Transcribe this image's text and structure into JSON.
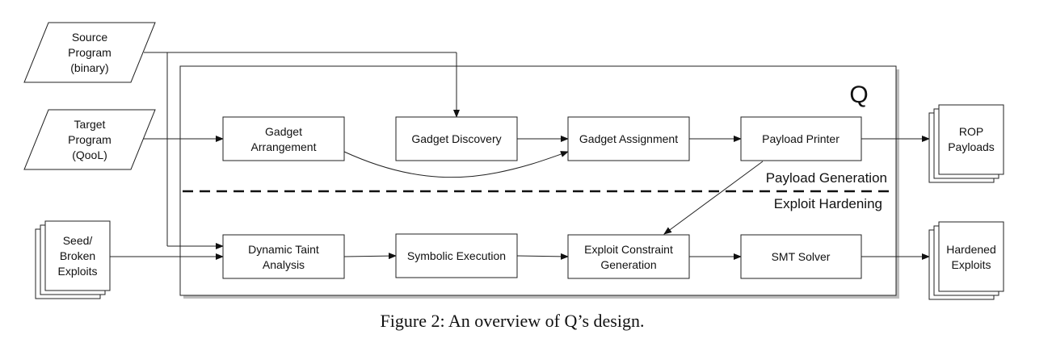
{
  "diagram": {
    "system_label": "Q",
    "section_top": "Payload Generation",
    "section_bottom": "Exploit Hardening",
    "inputs": {
      "source": [
        "Source",
        "Program",
        "(binary)"
      ],
      "target": [
        "Target",
        "Program",
        "(QooL)"
      ],
      "seed": [
        "Seed/",
        "Broken",
        "Exploits"
      ]
    },
    "nodes": {
      "gadget_arrangement": [
        "Gadget",
        "Arrangement"
      ],
      "gadget_discovery": [
        "Gadget Discovery"
      ],
      "gadget_assignment": [
        "Gadget Assignment"
      ],
      "payload_printer": [
        "Payload Printer"
      ],
      "dynamic_taint": [
        "Dynamic Taint",
        "Analysis"
      ],
      "symbolic_execution": [
        "Symbolic Execution"
      ],
      "exploit_constraint": [
        "Exploit Constraint",
        "Generation"
      ],
      "smt_solver": [
        "SMT Solver"
      ]
    },
    "outputs": {
      "rop": [
        "ROP",
        "Payloads"
      ],
      "hardened": [
        "Hardened",
        "Exploits"
      ]
    }
  },
  "caption": "Figure 2: An overview of Q’s design."
}
